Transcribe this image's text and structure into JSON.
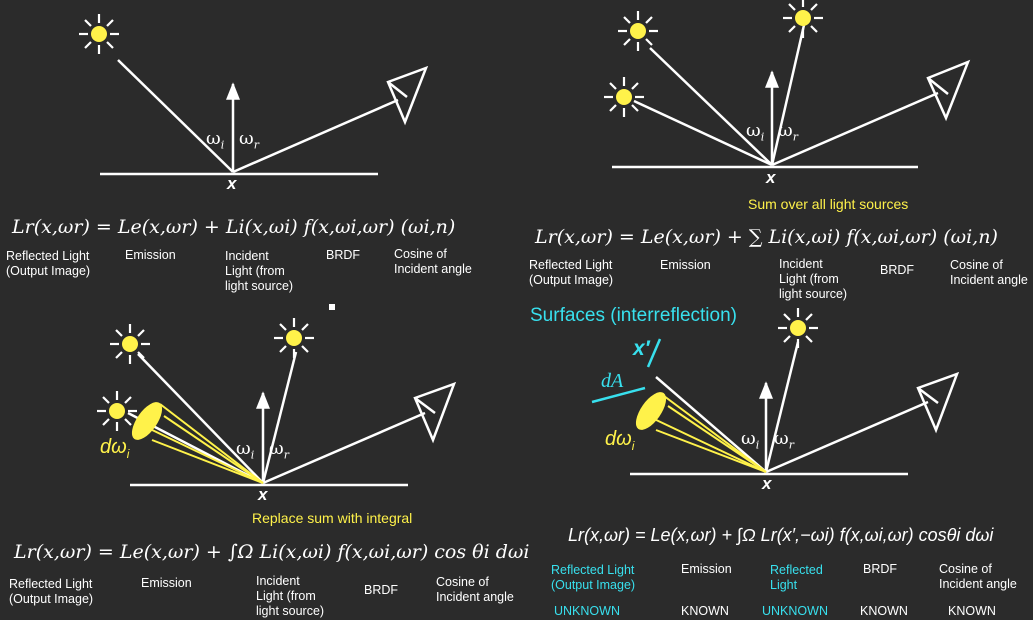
{
  "colors": {
    "background": "#2b2b2b",
    "line": "#ffffff",
    "highlight": "#fff24a",
    "surface": "#38e0ee"
  },
  "panel1": {
    "omega_i": "ω",
    "omega_i_sub": "i",
    "omega_r": "ω",
    "omega_r_sub": "r",
    "x_label": "x",
    "equation": "Lr(x,ωr) = Le(x,ωr) + Li(x,ωi) f(x,ωi,ωr) (ωi,n)",
    "labels": [
      "Reflected Light\n(Output Image)",
      "Emission",
      "Incident\nLight (from\nlight source)",
      "BRDF",
      "Cosine of\nIncident angle"
    ]
  },
  "panel2": {
    "caption": "Sum over all light sources",
    "omega_i": "ω",
    "omega_i_sub": "i",
    "omega_r": "ω",
    "omega_r_sub": "r",
    "x_label": "x",
    "equation": "Lr(x,ωr) = Le(x,ωr) + ∑ Li(x,ωi) f(x,ωi,ωr) (ωi,n)",
    "labels": [
      "Reflected Light\n(Output Image)",
      "Emission",
      "Incident\nLight (from\nlight source)",
      "BRDF",
      "Cosine of\nIncident angle"
    ]
  },
  "panel3": {
    "caption": "Replace sum with integral",
    "d_omega": "dω",
    "d_omega_sub": "i",
    "omega_i": "ω",
    "omega_i_sub": "i",
    "omega_r": "ω",
    "omega_r_sub": "r",
    "x_label": "x",
    "equation": "Lr(x,ωr) = Le(x,ωr) + ∫Ω Li(x,ωi) f(x,ωi,ωr) cos θi dωi",
    "labels": [
      "Reflected Light\n(Output Image)",
      "Emission",
      "Incident\nLight (from\nlight source)",
      "BRDF",
      "Cosine of\nIncident angle"
    ]
  },
  "panel4": {
    "caption": "Surfaces (interreflection)",
    "x_prime": "x′",
    "dA": "dA",
    "d_omega": "dω",
    "d_omega_sub": "i",
    "omega_i": "ω",
    "omega_i_sub": "i",
    "omega_r": "ω",
    "omega_r_sub": "r",
    "x_label": "x",
    "equation": "Lr(x,ωr) = Le(x,ωr) + ∫Ω Lr(x′,−ωi) f(x,ωi,ωr) cosθi dωi",
    "labels": [
      "Reflected Light\n(Output Image)",
      "Emission",
      "Reflected\nLight",
      "BRDF",
      "Cosine of\nIncident angle"
    ],
    "status": [
      "UNKNOWN",
      "KNOWN",
      "UNKNOWN",
      "KNOWN",
      "KNOWN"
    ]
  }
}
